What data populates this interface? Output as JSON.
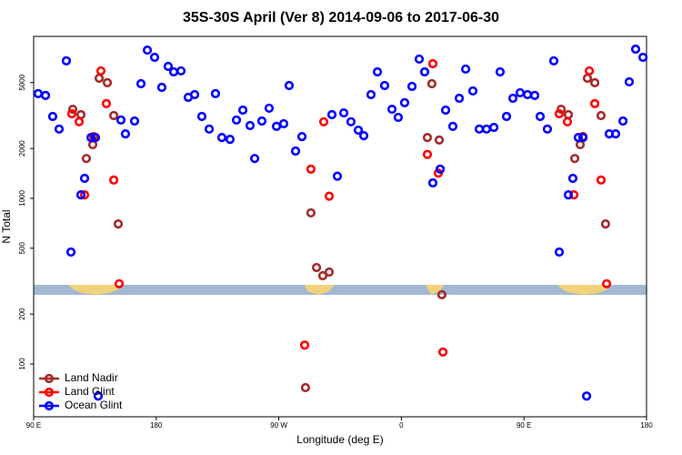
{
  "chart_data": {
    "type": "scatter",
    "title": "35S-30S April (Ver 8)   2014-09-06 to 2017-06-30",
    "xlabel": "Longitude (deg E)",
    "ylabel": "N Total",
    "xlim": [
      90,
      540
    ],
    "ylim": [
      48,
      9500
    ],
    "log_y": true,
    "xticks": [
      {
        "value": 90,
        "label": "90 E"
      },
      180,
      {
        "value": 270,
        "label": "90 W"
      },
      {
        "value": 360,
        "label": "0"
      },
      {
        "value": 450,
        "label": "90 E"
      },
      {
        "value": 540,
        "label": "180"
      }
    ],
    "yticks": [
      100,
      200,
      500,
      1000,
      2000,
      5000
    ],
    "legend": "lower left",
    "series": [
      {
        "name": "Land Nadir",
        "color": "#a52a2a",
        "x": [
          118.7,
          124.7,
          128.7,
          133.4,
          138.1,
          144.1,
          148.8,
          152.1,
          289.6,
          293.6,
          297.7,
          302.3,
          307.0,
          379.1,
          382.4,
          387.8,
          389.7,
          477.3,
          482.6,
          487.3,
          491.3,
          496.6,
          502.0,
          506.6,
          509.9
        ],
        "values": [
          3450,
          3200,
          1740,
          2110,
          5310,
          4990,
          3160,
          700,
          72,
          817,
          382,
          341,
          359,
          2330,
          4920,
          2250,
          262,
          3450,
          3200,
          1740,
          2110,
          5310,
          4990,
          3160,
          700
        ]
      },
      {
        "name": "Land Glint",
        "color": "#ff0000",
        "x": [
          118.0,
          123.4,
          127.4,
          134.1,
          139.4,
          143.4,
          148.8,
          152.8,
          289.0,
          293.6,
          303.0,
          307.0,
          379.1,
          383.1,
          387.1,
          390.5,
          475.9,
          481.9,
          486.6,
          493.3,
          498.0,
          502.0,
          506.6,
          510.7
        ],
        "values": [
          3240,
          2900,
          1050,
          2360,
          5880,
          3730,
          1290,
          305,
          130,
          1500,
          2900,
          1030,
          1840,
          6500,
          1420,
          118,
          3240,
          2900,
          1050,
          2360,
          5880,
          3730,
          1290,
          305
        ]
      },
      {
        "name": "Ocean Glint",
        "color": "#0000ff",
        "x": [
          93.3,
          98.7,
          104.0,
          108.7,
          114.0,
          117.4,
          124.7,
          127.4,
          132.1,
          135.4,
          154.1,
          157.4,
          164.1,
          168.8,
          173.5,
          178.8,
          184.1,
          188.8,
          192.8,
          198.2,
          203.5,
          208.2,
          213.5,
          218.9,
          223.5,
          228.2,
          234.2,
          238.9,
          243.6,
          248.9,
          252.3,
          257.6,
          262.9,
          268.3,
          273.6,
          277.6,
          282.3,
          287.0,
          309.0,
          313.0,
          317.7,
          323.0,
          328.4,
          332.4,
          337.7,
          342.4,
          347.7,
          353.1,
          357.7,
          362.4,
          367.8,
          373.1,
          377.1,
          383.1,
          388.5,
          392.5,
          397.8,
          402.5,
          407.2,
          412.5,
          417.2,
          422.5,
          427.9,
          432.5,
          437.2,
          441.9,
          447.2,
          452.6,
          457.9,
          461.9,
          467.2,
          471.9,
          475.9,
          482.6,
          485.9,
          489.9,
          493.3,
          496.0,
          512.6,
          517.3,
          522.7,
          527.3,
          532.0,
          537.4,
          137.4
        ],
        "values": [
          4290,
          4180,
          3120,
          2620,
          6760,
          474,
          1050,
          1320,
          2330,
          2330,
          2970,
          2450,
          2930,
          4920,
          7850,
          7100,
          4680,
          6260,
          5800,
          5880,
          4070,
          4230,
          3120,
          2620,
          4290,
          2330,
          2270,
          2970,
          3410,
          2750,
          1740,
          2930,
          3500,
          2720,
          2820,
          4800,
          1930,
          2360,
          3200,
          1360,
          3280,
          2900,
          2580,
          2390,
          4230,
          5800,
          4800,
          3450,
          3080,
          3780,
          4740,
          6930,
          5800,
          1240,
          1500,
          3410,
          2720,
          4020,
          6030,
          4450,
          2620,
          2620,
          2680,
          5800,
          3120,
          4020,
          4340,
          4230,
          4180,
          3120,
          2620,
          6760,
          474,
          1050,
          1320,
          2330,
          2330,
          64,
          2450,
          2450,
          2930,
          5050,
          7960,
          7100,
          64
        ]
      }
    ]
  }
}
